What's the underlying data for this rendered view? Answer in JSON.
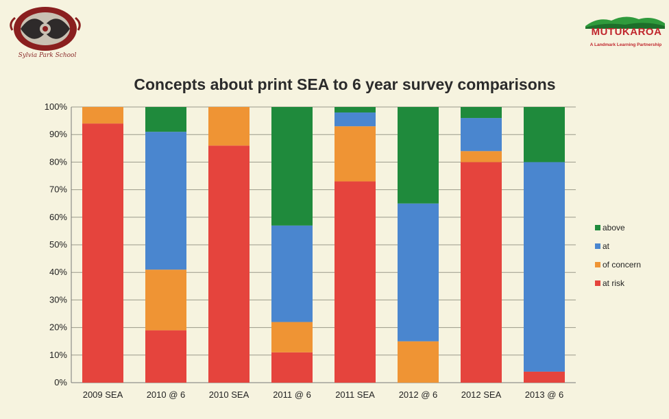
{
  "logos": {
    "left_caption": "Sylvia Park School",
    "right_brand": "MUTUKAROA",
    "right_tagline": "A Landmark Learning Partnership"
  },
  "colors": {
    "above": "#1f8a3c",
    "at": "#4a86cf",
    "of_concern": "#ef9434",
    "at_risk": "#e5443d"
  },
  "chart_data": {
    "type": "bar",
    "stacked": true,
    "title": "Concepts about print SEA to 6 year survey comparisons",
    "categories": [
      "2009 SEA",
      "2010 @ 6",
      "2010 SEA",
      "2011 @ 6",
      "2011 SEA",
      "2012 @ 6",
      "2012 SEA",
      "2013 @ 6"
    ],
    "series": [
      {
        "name": "at risk",
        "key": "at_risk",
        "values": [
          94,
          19,
          86,
          11,
          73,
          0,
          80,
          4
        ]
      },
      {
        "name": "of concern",
        "key": "of_concern",
        "values": [
          6,
          22,
          14,
          11,
          20,
          15,
          4,
          0
        ]
      },
      {
        "name": "at",
        "key": "at",
        "values": [
          0,
          50,
          0,
          35,
          5,
          50,
          12,
          76
        ]
      },
      {
        "name": "above",
        "key": "above",
        "values": [
          0,
          9,
          0,
          43,
          2,
          35,
          4,
          20
        ]
      }
    ],
    "legend_order": [
      "above",
      "at",
      "of concern",
      "at risk"
    ],
    "ylim": [
      0,
      100
    ],
    "yticks": [
      "0%",
      "10%",
      "20%",
      "30%",
      "40%",
      "50%",
      "60%",
      "70%",
      "80%",
      "90%",
      "100%"
    ],
    "grid": true,
    "legend_position": "right"
  }
}
